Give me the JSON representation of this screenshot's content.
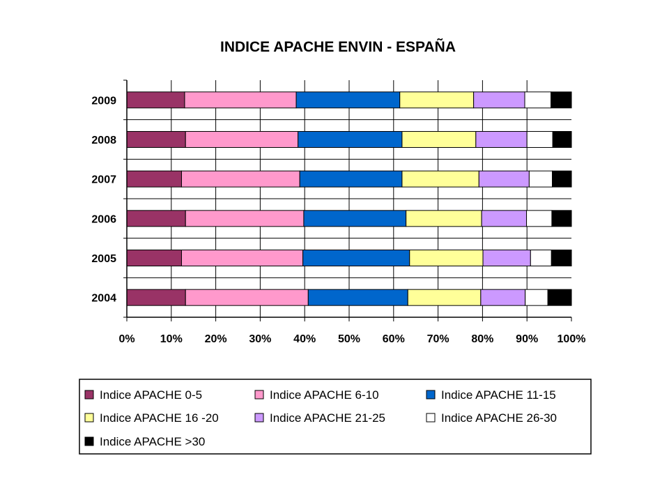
{
  "chart_data": {
    "type": "bar",
    "orientation": "horizontal",
    "stacked": "percent",
    "title": "INDICE APACHE ENVIN - ESPAÑA",
    "xlabel": "",
    "ylabel": "",
    "xlim": [
      0,
      100
    ],
    "x_ticks": [
      "0%",
      "10%",
      "20%",
      "30%",
      "40%",
      "50%",
      "60%",
      "70%",
      "80%",
      "90%",
      "100%"
    ],
    "categories": [
      "2009",
      "2008",
      "2007",
      "2006",
      "2005",
      "2004"
    ],
    "grid": true,
    "legend_position": "bottom",
    "series": [
      {
        "name": "Indice APACHE 0-5",
        "color": "#993366",
        "values": [
          13.0,
          13.2,
          12.3,
          13.2,
          12.3,
          13.2
        ]
      },
      {
        "name": "Indice APACHE  6-10",
        "color": "#FF99CC",
        "values": [
          25.1,
          25.3,
          26.6,
          26.6,
          27.3,
          27.6
        ]
      },
      {
        "name": "Indice APACHE  11-15",
        "color": "#0066CC",
        "values": [
          23.3,
          23.4,
          23.0,
          23.0,
          24.0,
          22.4
        ]
      },
      {
        "name": "Indice APACHE 16 -20",
        "color": "#FFFF99",
        "values": [
          16.6,
          16.6,
          17.3,
          17.0,
          16.5,
          16.4
        ]
      },
      {
        "name": "Indice APACHE 21-25",
        "color": "#CC99FF",
        "values": [
          11.5,
          11.5,
          11.3,
          10.1,
          10.7,
          10.0
        ]
      },
      {
        "name": "Indice APACHE 26-30",
        "color": "#FFFFFF",
        "values": [
          5.9,
          5.8,
          5.2,
          5.7,
          4.7,
          5.1
        ]
      },
      {
        "name": "Indice APACHE >30",
        "color": "#000000",
        "values": [
          4.6,
          4.2,
          4.3,
          4.4,
          4.5,
          5.3
        ]
      }
    ]
  }
}
